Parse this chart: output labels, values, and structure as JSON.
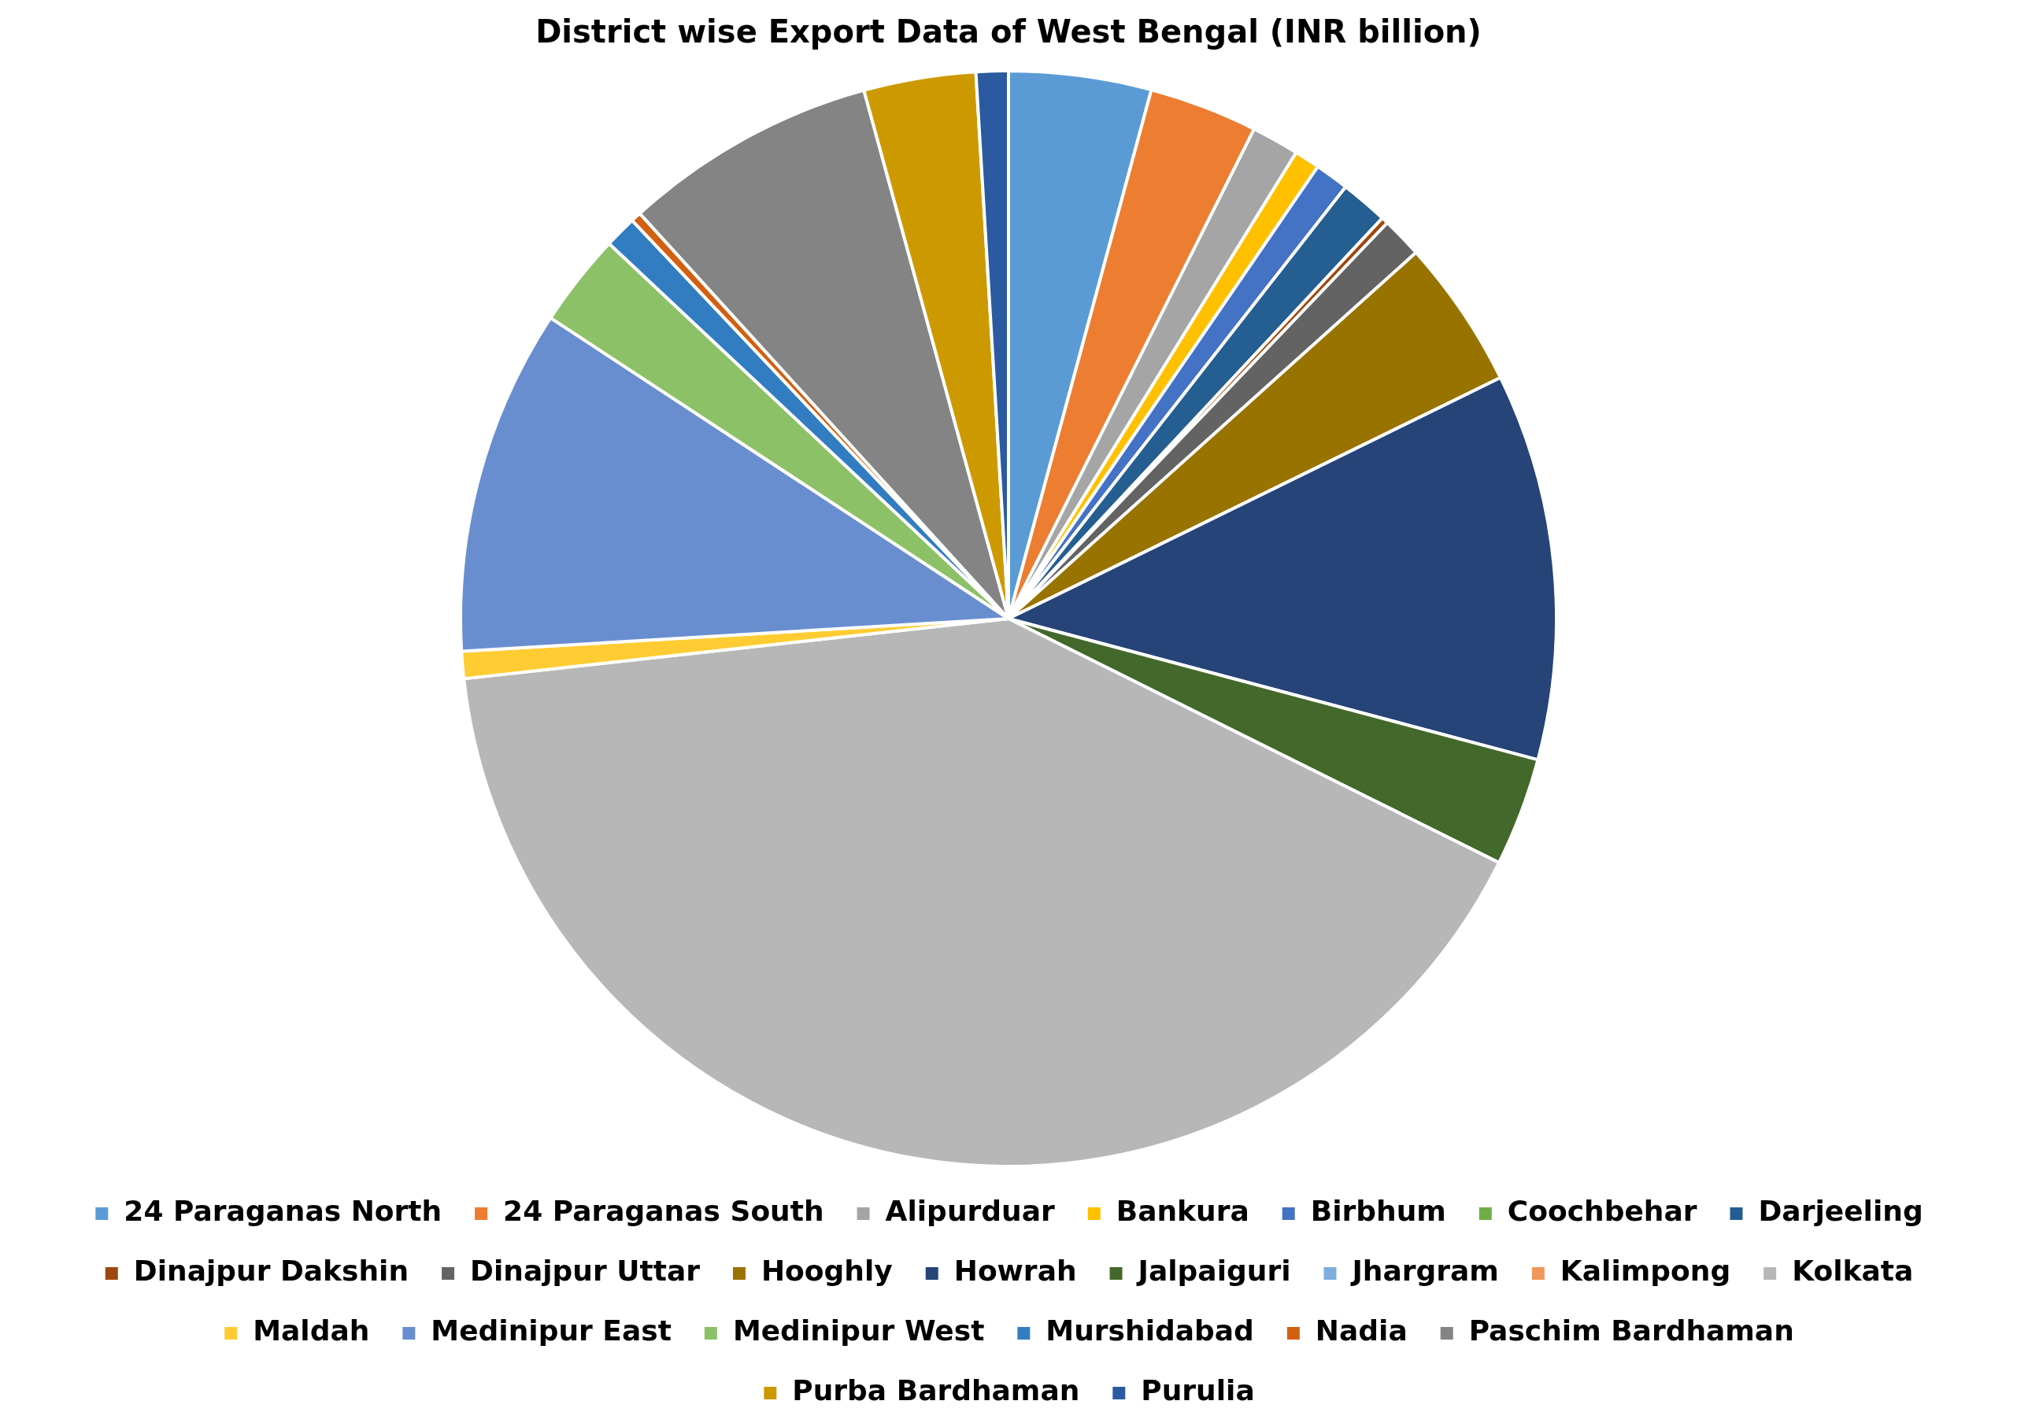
{
  "chart_data": {
    "type": "pie",
    "title": "District wise Export Data of West Bengal (INR billion)",
    "categories": [
      "24 Paraganas North",
      "24 Paraganas South",
      "Alipurduar",
      "Bankura",
      "Birbhum",
      "Coochbehar",
      "Darjeeling",
      "Dinajpur Dakshin",
      "Dinajpur Uttar",
      "Hooghly",
      "Howrah",
      "Jalpaiguri",
      "Jhargram",
      "Kalimpong",
      "Kolkata",
      "Maldah",
      "Medinipur East",
      "Medinipur West",
      "Murshidabad",
      "Nadia",
      "Paschim Bardhaman",
      "Purba Bardhaman",
      "Purulia"
    ],
    "values": [
      4.2,
      3.2,
      1.4,
      0.75,
      1.0,
      null,
      1.4,
      0.2,
      1.2,
      4.4,
      11.4,
      3.2,
      null,
      null,
      40.9,
      0.8,
      10.2,
      2.75,
      0.95,
      0.3,
      7.5,
      3.3,
      0.95
    ],
    "colors": [
      "#5b9bd5",
      "#ed7d31",
      "#a5a5a5",
      "#ffc000",
      "#4472c4",
      "#70ad47",
      "#255e91",
      "#9e480e",
      "#636363",
      "#997300",
      "#264478",
      "#43682b",
      "#7cafdd",
      "#f1975a",
      "#b7b7b7",
      "#ffcd33",
      "#698ed0",
      "#8cc168",
      "#327dc2",
      "#d26012",
      "#848484",
      "#cc9a00",
      "#2c5aa0"
    ],
    "legend": "bottom"
  }
}
